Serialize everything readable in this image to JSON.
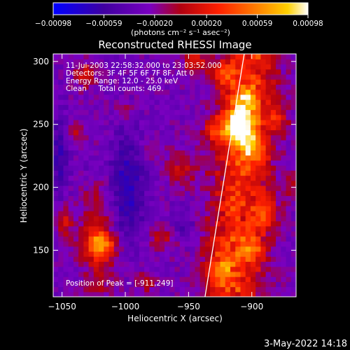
{
  "chart_data": {
    "type": "heatmap",
    "title": "Reconstructed RHESSI Image",
    "xlabel": "Heliocentric X (arcsec)",
    "ylabel": "Heliocentric Y (arcsec)",
    "xlim": [
      -1057,
      -865
    ],
    "ylim": [
      113,
      306
    ],
    "x_ticks": [
      -1050,
      -1000,
      -950,
      -900
    ],
    "x_tick_labels": [
      "−1050",
      "−1000",
      "−950",
      "−900"
    ],
    "y_ticks": [
      150,
      200,
      250,
      300
    ],
    "y_tick_labels": [
      "150",
      "200",
      "250",
      "300"
    ],
    "colorbar": {
      "range": [
        -0.00098,
        0.00098
      ],
      "ticks": [
        -0.00098,
        -0.00059,
        -0.0002,
        0.0002,
        0.00059,
        0.00098
      ],
      "tick_labels": [
        "−0.00098",
        "−0.00059",
        "−0.00020",
        "0.00020",
        "0.00059",
        "0.00098"
      ],
      "unit_label": "(photons cm⁻² s⁻¹ asec⁻²)",
      "colors": [
        "#0000ff",
        "#4000a0",
        "#7a00c0",
        "#b00010",
        "#ff2000",
        "#ff8000",
        "#ffd000",
        "#ffffff"
      ]
    },
    "annotations": [
      "11-Jul-2003 22:58:32.000 to 23:03:52.000",
      "Detectors: 3F 4F 5F 6F 7F 8F, Att 0",
      "Energy Range: 12.0 - 25.0 keV",
      "Clean     Total counts: 469."
    ],
    "peak_label": "Position of Peak = [-911,249]",
    "peak": [
      -911,
      249
    ],
    "limb_line": [
      [
        -937,
        113
      ],
      [
        -906,
        306
      ]
    ],
    "grid": false
  },
  "footer": {
    "date": "3-May-2022 14:18"
  }
}
